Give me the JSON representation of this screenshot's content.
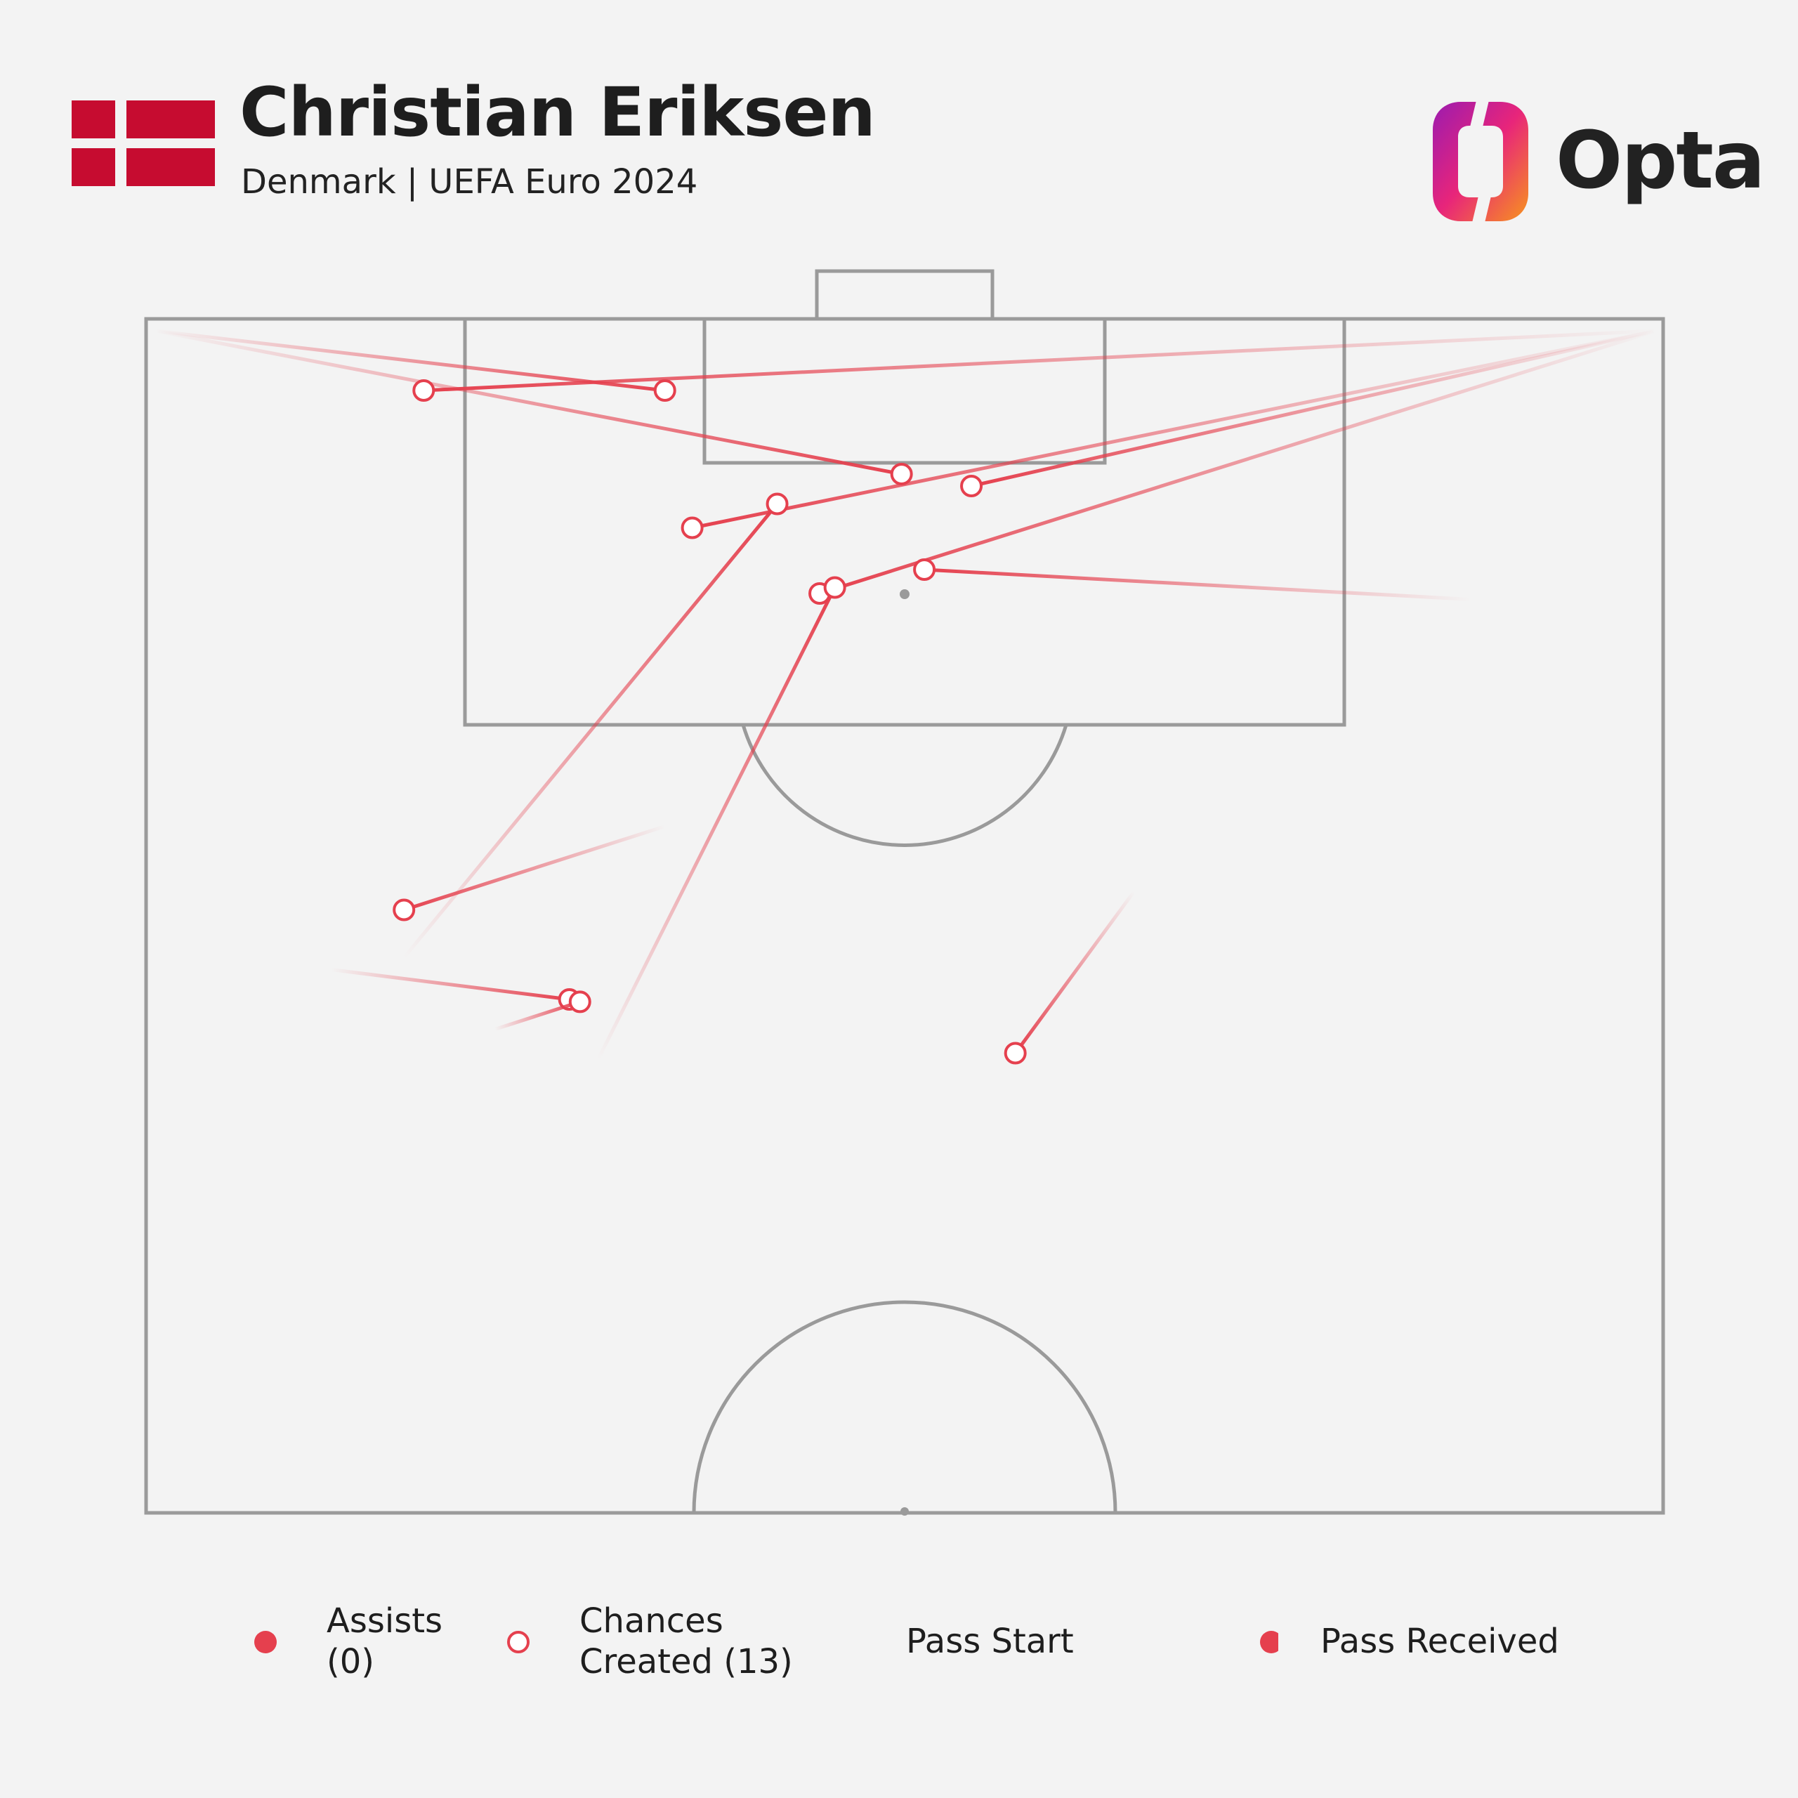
{
  "header": {
    "title": "Christian Eriksen",
    "subtitle": "Denmark | UEFA Euro 2024",
    "flag_colors": {
      "red": "#c60c30",
      "white": "#f3f3f3"
    }
  },
  "logo": {
    "text": "Opta",
    "gradient": [
      "#9b1bb0",
      "#e8257a",
      "#f7941d"
    ]
  },
  "colors": {
    "pass": "#e5404e",
    "pitch_lines": "#9a9a9a",
    "background": "#f3f3f3"
  },
  "chart_data": {
    "type": "scatter",
    "description_units": "normalized pitch coordinates: x across the pitch from left touchline (0) to right touchline (100), y from the goal line (0) to the halfway line (100)",
    "assists": [],
    "chances_created": [
      {
        "start": [
          0.6,
          1.0
        ],
        "end": [
          34.2,
          6.0
        ]
      },
      {
        "start": [
          0.6,
          1.0
        ],
        "end": [
          49.8,
          13.0
        ]
      },
      {
        "start": [
          99.5,
          1.0
        ],
        "end": [
          18.3,
          6.0
        ]
      },
      {
        "start": [
          99.5,
          1.0
        ],
        "end": [
          54.4,
          14.0
        ]
      },
      {
        "start": [
          99.5,
          1.0
        ],
        "end": [
          44.4,
          23.0
        ]
      },
      {
        "start": [
          99.5,
          1.0
        ],
        "end": [
          36.0,
          17.5
        ]
      },
      {
        "start": [
          87.3,
          23.5
        ],
        "end": [
          51.3,
          21.0
        ]
      },
      {
        "start": [
          17.0,
          53.5
        ],
        "end": [
          41.6,
          15.5
        ]
      },
      {
        "start": [
          29.8,
          62.0
        ],
        "end": [
          45.4,
          22.5
        ]
      },
      {
        "start": [
          34.2,
          42.5
        ],
        "end": [
          17.0,
          49.5
        ]
      },
      {
        "start": [
          12.2,
          54.5
        ],
        "end": [
          27.9,
          57.0
        ]
      },
      {
        "start": [
          23.0,
          59.5
        ],
        "end": [
          28.6,
          57.2
        ]
      },
      {
        "start": [
          65.1,
          48.0
        ],
        "end": [
          57.3,
          61.5
        ]
      }
    ]
  },
  "legend": {
    "assists_label": "Assists (0)",
    "chances_label": "Chances Created (13)",
    "pass_start_label": "Pass Start",
    "pass_received_label": "Pass Received"
  }
}
